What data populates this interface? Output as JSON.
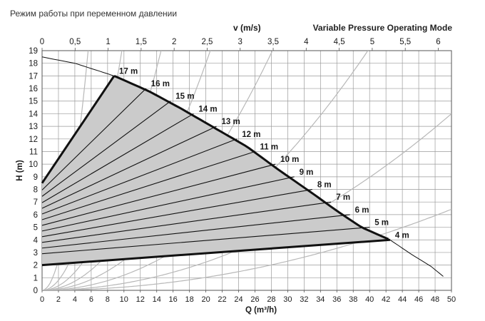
{
  "header": {
    "title_ru": "Режим работы при переменном давлении",
    "title_en": "Variable Pressure Operating Mode",
    "velocity_label": "v (m/s)"
  },
  "chart_data": {
    "type": "line",
    "xlabel": "Q (m³/h)",
    "ylabel": "H (m)",
    "x2label": "v (m/s)",
    "xlim": [
      0,
      50
    ],
    "ylim": [
      0,
      19
    ],
    "x2lim": [
      0,
      6.2
    ],
    "x_ticks": [
      "0",
      "2",
      "4",
      "6",
      "8",
      "10",
      "12",
      "14",
      "16",
      "18",
      "20",
      "22",
      "24",
      "26",
      "28",
      "30",
      "32",
      "34",
      "36",
      "38",
      "40",
      "42",
      "44",
      "46",
      "48",
      "50"
    ],
    "y_ticks": [
      "0",
      "1",
      "2",
      "3",
      "4",
      "5",
      "6",
      "7",
      "8",
      "9",
      "10",
      "11",
      "12",
      "13",
      "14",
      "15",
      "16",
      "17",
      "18",
      "19"
    ],
    "x2_ticks": [
      "0",
      "0,5",
      "1",
      "1,5",
      "2",
      "2,5",
      "3",
      "3,5",
      "4",
      "4,5",
      "5",
      "5,5",
      "6"
    ],
    "x2_tick_values": [
      0,
      0.5,
      1,
      1.5,
      2,
      2.5,
      3,
      3.5,
      4,
      4.5,
      5,
      5.5,
      6
    ],
    "grid": true,
    "max_curve": {
      "x": [
        0,
        4,
        8.8,
        13,
        17,
        21,
        25,
        29,
        33,
        36,
        39,
        42.5,
        45,
        47.5,
        49
      ],
      "y": [
        18.5,
        18.0,
        17.0,
        15.8,
        14.4,
        12.9,
        11.4,
        9.5,
        7.7,
        6.3,
        5.0,
        4.0,
        2.9,
        1.9,
        1.1
      ]
    },
    "parabolas": [
      {
        "k": 0.6
      },
      {
        "k": 0.2
      },
      {
        "k": 0.09
      },
      {
        "k": 0.045
      },
      {
        "k": 0.024
      },
      {
        "k": 0.012
      },
      {
        "k": 0.0056
      },
      {
        "k": 0.00257
      }
    ],
    "envelope": {
      "top_left": [
        0,
        8.5
      ],
      "bottom_left": [
        0,
        2.0
      ],
      "top_right": [
        8.8,
        17.0
      ],
      "bottom_right": [
        42.5,
        4.0
      ]
    },
    "head_lines": [
      {
        "label": "17 m",
        "end": [
          8.8,
          17.0
        ]
      },
      {
        "label": "16 m",
        "end": [
          12.7,
          16.0
        ]
      },
      {
        "label": "15 m",
        "end": [
          15.7,
          15.0
        ]
      },
      {
        "label": "14 m",
        "end": [
          18.5,
          14.0
        ]
      },
      {
        "label": "13 m",
        "end": [
          21.3,
          13.0
        ]
      },
      {
        "label": "12 m",
        "end": [
          23.8,
          12.0
        ]
      },
      {
        "label": "11 m",
        "end": [
          26.0,
          11.0
        ]
      },
      {
        "label": "10 m",
        "end": [
          28.5,
          10.0
        ]
      },
      {
        "label": "9 m",
        "end": [
          30.8,
          9.0
        ]
      },
      {
        "label": "8 m",
        "end": [
          33.0,
          8.0
        ]
      },
      {
        "label": "7 m",
        "end": [
          35.3,
          7.0
        ]
      },
      {
        "label": "6 m",
        "end": [
          37.6,
          6.0
        ]
      },
      {
        "label": "5 m",
        "end": [
          40.0,
          5.0
        ]
      },
      {
        "label": "4 m",
        "end": [
          42.5,
          4.0
        ]
      }
    ],
    "head_line_start_y": [
      8.5,
      7.95,
      7.45,
      6.95,
      6.5,
      6.05,
      5.6,
      5.15,
      4.7,
      4.25,
      3.8,
      3.35,
      2.9,
      2.0
    ]
  }
}
